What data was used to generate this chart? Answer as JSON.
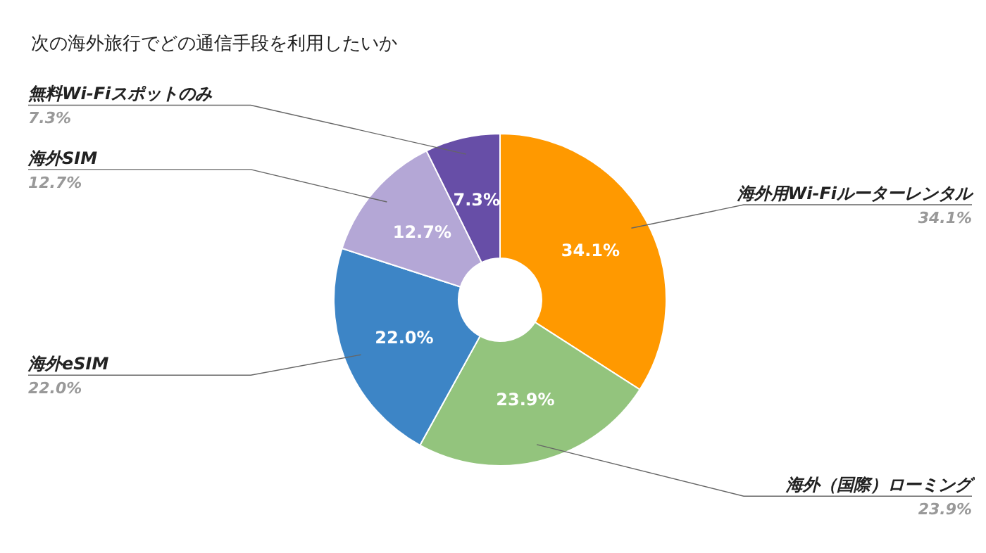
{
  "chart_data": {
    "type": "donut",
    "title": "次の海外旅行でどの通信手段を利用したいか",
    "categories": [
      "海外用Wi-Fiルーターレンタル",
      "海外（国際）ローミング",
      "海外eSIM",
      "海外SIM",
      "無料Wi-Fiスポットのみ"
    ],
    "values": [
      34.1,
      23.9,
      22.0,
      12.7,
      7.3
    ],
    "value_labels": [
      "34.1%",
      "23.9%",
      "22.0%",
      "12.7%",
      "7.3%"
    ],
    "colors": [
      "#ff9900",
      "#93c47d",
      "#3d85c6",
      "#b4a7d6",
      "#674ea7"
    ]
  }
}
